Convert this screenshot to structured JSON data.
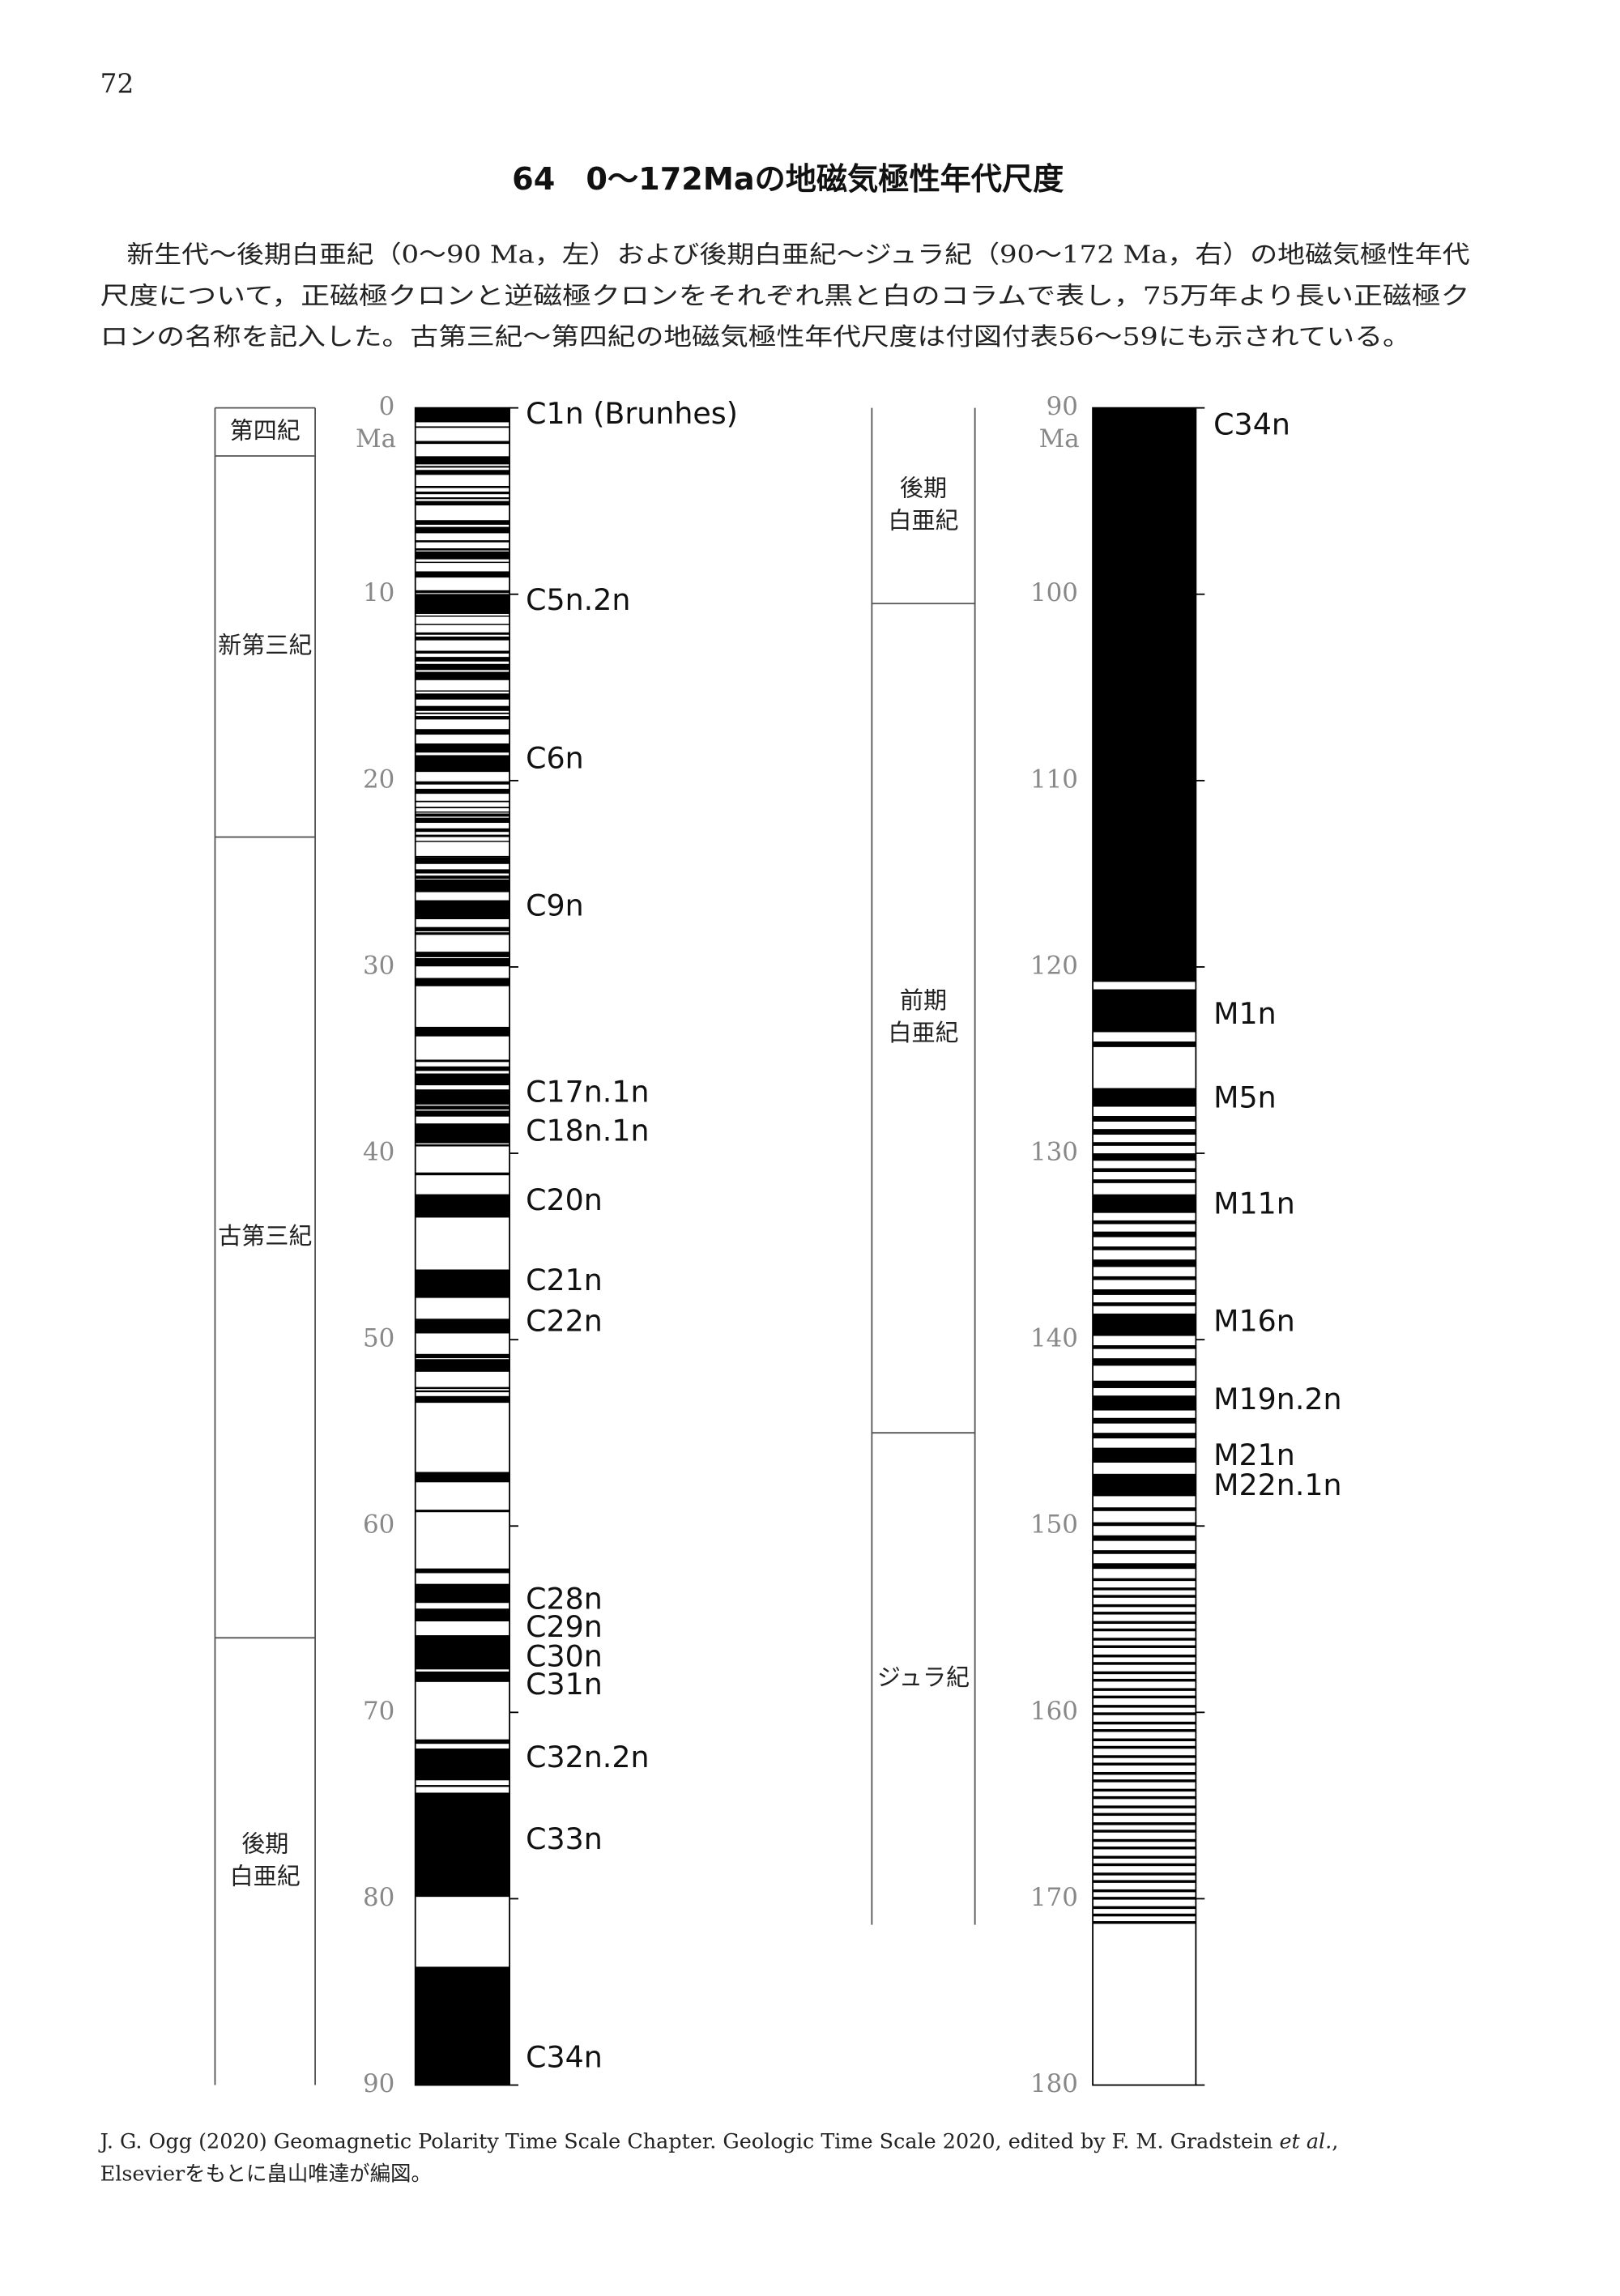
{
  "page_number": "72",
  "title": "64　0〜172Maの地磁気極性年代尺度",
  "body": [
    "新生代〜後期白亜紀（0〜90 Ma，左）および後期白亜紀〜ジュラ紀（90〜172 Ma，右）の地磁気極性年代",
    "尺度について，正磁極クロンと逆磁極クロンをそれぞれ黒と白のコラムで表し，75万年より長い正磁極ク",
    "ロンの名称を記入した。古第三紀〜第四紀の地磁気極性年代尺度は付図付表56〜59にも示されている。"
  ],
  "columns": [
    {
      "ylim": [
        0,
        90
      ],
      "yticks": [
        0,
        10,
        20,
        30,
        40,
        50,
        60,
        70,
        80,
        90
      ],
      "unit": "Ma",
      "periods": [
        {
          "label": [
            "第四紀"
          ],
          "start": 0,
          "end": 2.58
        },
        {
          "label": [
            "新第三紀"
          ],
          "start": 2.58,
          "end": 23.03
        },
        {
          "label": [
            "古第三紀"
          ],
          "start": 23.03,
          "end": 66.0
        },
        {
          "label": [
            "後期",
            "白亜紀"
          ],
          "start": 66.0,
          "end": 90
        }
      ],
      "normal_intervals": [
        [
          0,
          0.773
        ],
        [
          0.99,
          1.07
        ],
        [
          1.775,
          1.934
        ],
        [
          2.595,
          3.032
        ],
        [
          3.116,
          3.207
        ],
        [
          3.33,
          3.596
        ],
        [
          4.187,
          4.3
        ],
        [
          4.493,
          4.631
        ],
        [
          4.799,
          4.896
        ],
        [
          4.997,
          5.235
        ],
        [
          6.023,
          6.272
        ],
        [
          6.386,
          6.727
        ],
        [
          7.104,
          7.214
        ],
        [
          7.537,
          7.65
        ],
        [
          7.701,
          8.125
        ],
        [
          8.257,
          8.3
        ],
        [
          8.771,
          9.105
        ],
        [
          9.786,
          9.937
        ],
        [
          9.984,
          11.056
        ],
        [
          11.146,
          11.188
        ],
        [
          11.592,
          11.657
        ],
        [
          12.049,
          12.174
        ],
        [
          12.272,
          12.474
        ],
        [
          13.032,
          13.183
        ],
        [
          13.363,
          13.608
        ],
        [
          13.739,
          14.07
        ],
        [
          14.163,
          14.609
        ],
        [
          15.16,
          15.222
        ],
        [
          15.327,
          15.651
        ],
        [
          15.994,
          16.261
        ],
        [
          16.351,
          16.434
        ],
        [
          16.532,
          16.721
        ],
        [
          17.235,
          17.533
        ],
        [
          18.007,
          18.497
        ],
        [
          18.636,
          19.535
        ],
        [
          20.04,
          20.21
        ],
        [
          20.44,
          20.709
        ],
        [
          21.083,
          21.159
        ],
        [
          21.403,
          21.483
        ],
        [
          21.659,
          21.688
        ],
        [
          21.767,
          21.936
        ],
        [
          21.992,
          22.268
        ],
        [
          22.564,
          22.754
        ],
        [
          22.902,
          23.03
        ],
        [
          23.233,
          23.295
        ],
        [
          24.044,
          24.062
        ],
        [
          24.108,
          24.474
        ],
        [
          24.761,
          24.984
        ],
        [
          25.099,
          25.264
        ],
        [
          25.304,
          25.987
        ],
        [
          26.42,
          27.439
        ],
        [
          27.859,
          28.087
        ],
        [
          28.141,
          28.278
        ],
        [
          29.183,
          29.477
        ],
        [
          29.527,
          29.97
        ],
        [
          30.591,
          31.034
        ],
        [
          33.214,
          33.726
        ],
        [
          34.976,
          35.102
        ],
        [
          35.336,
          35.58
        ],
        [
          35.718,
          36.351
        ],
        [
          36.573,
          37.385
        ],
        [
          37.444,
          37.652
        ],
        [
          37.71,
          38.03
        ],
        [
          38.398,
          39.464
        ],
        [
          39.522,
          39.631
        ],
        [
          41.03,
          41.18
        ],
        [
          42.196,
          43.45
        ],
        [
          46.235,
          47.76
        ],
        [
          48.878,
          49.666
        ],
        [
          50.767,
          50.996
        ],
        [
          51.047,
          51.724
        ],
        [
          52.54,
          52.648
        ],
        [
          52.72,
          52.823
        ],
        [
          53.027,
          53.39
        ],
        [
          57.101,
          57.656
        ],
        [
          59.126,
          59.26
        ],
        [
          62.278,
          62.53
        ],
        [
          63.104,
          64.128
        ],
        [
          64.432,
          65.118
        ],
        [
          65.861,
          67.696
        ],
        [
          67.809,
          68.369
        ],
        [
          71.449,
          71.689
        ],
        [
          71.939,
          73.649
        ],
        [
          73.9,
          74.0
        ],
        [
          74.309,
          79.9
        ],
        [
          83.65,
          90
        ]
      ],
      "chrons": [
        {
          "label": "C1n (Brunhes)",
          "age": 0.4
        },
        {
          "label": "C5n.2n",
          "age": 10.4
        },
        {
          "label": "C6n",
          "age": 18.9
        },
        {
          "label": "C9n",
          "age": 26.8
        },
        {
          "label": "C17n.1n",
          "age": 36.8
        },
        {
          "label": "C18n.1n",
          "age": 38.9
        },
        {
          "label": "C20n",
          "age": 42.6
        },
        {
          "label": "C21n",
          "age": 46.9
        },
        {
          "label": "C22n",
          "age": 49.1
        },
        {
          "label": "C28n",
          "age": 64.0
        },
        {
          "label": "C29n",
          "age": 65.5
        },
        {
          "label": "C30n",
          "age": 67.1
        },
        {
          "label": "C31n",
          "age": 68.6
        },
        {
          "label": "C32n.2n",
          "age": 72.5
        },
        {
          "label": "C33n",
          "age": 76.9
        },
        {
          "label": "C34n",
          "age": 88.6
        }
      ]
    },
    {
      "ylim": [
        90,
        180
      ],
      "yticks": [
        90,
        100,
        110,
        120,
        130,
        140,
        150,
        160,
        170,
        180
      ],
      "unit": "Ma",
      "periods": [
        {
          "label": [
            "後期",
            "白亜紀"
          ],
          "start": 90,
          "end": 100.5
        },
        {
          "label": [
            "前期",
            "白亜紀"
          ],
          "start": 100.5,
          "end": 145.0
        },
        {
          "label": [
            "ジュラ紀"
          ],
          "start": 145.0,
          "end": 171.4
        }
      ],
      "normal_intervals": [
        [
          90,
          120.8
        ],
        [
          121.2,
          123.5
        ],
        [
          124.0,
          124.3
        ],
        [
          126.5,
          127.5
        ],
        [
          128.0,
          128.3
        ],
        [
          128.7,
          129.0
        ],
        [
          129.4,
          129.6
        ],
        [
          130.0,
          130.4
        ],
        [
          130.8,
          131.0
        ],
        [
          131.4,
          131.6
        ],
        [
          132.2,
          133.2
        ],
        [
          133.6,
          133.8
        ],
        [
          134.2,
          134.5
        ],
        [
          135.0,
          135.2
        ],
        [
          135.7,
          136.1
        ],
        [
          136.6,
          136.8
        ],
        [
          137.3,
          137.6
        ],
        [
          138.0,
          138.2
        ],
        [
          138.6,
          139.8
        ],
        [
          140.3,
          140.5
        ],
        [
          141.0,
          141.4
        ],
        [
          142.2,
          142.6
        ],
        [
          143.0,
          143.8
        ],
        [
          144.2,
          144.5
        ],
        [
          145.0,
          145.3
        ],
        [
          145.8,
          146.6
        ],
        [
          147.2,
          148.4
        ],
        [
          149.0,
          149.2
        ],
        [
          149.8,
          150.0
        ],
        [
          150.5,
          150.8
        ],
        [
          151.3,
          151.5
        ],
        [
          152.0,
          152.3
        ],
        [
          152.8,
          152.95
        ],
        [
          153.3,
          153.45
        ],
        [
          153.7,
          153.85
        ],
        [
          154.2,
          154.35
        ],
        [
          154.6,
          154.75
        ],
        [
          155.1,
          155.25
        ],
        [
          155.5,
          155.65
        ],
        [
          156.0,
          156.15
        ],
        [
          156.4,
          156.55
        ],
        [
          156.9,
          157.05
        ],
        [
          157.3,
          157.45
        ],
        [
          157.8,
          157.95
        ],
        [
          158.2,
          158.35
        ],
        [
          158.7,
          158.85
        ],
        [
          159.1,
          159.25
        ],
        [
          159.6,
          159.75
        ],
        [
          160.0,
          160.15
        ],
        [
          160.5,
          160.65
        ],
        [
          160.9,
          161.05
        ],
        [
          161.4,
          161.55
        ],
        [
          161.8,
          161.95
        ],
        [
          162.3,
          162.45
        ],
        [
          162.7,
          162.85
        ],
        [
          163.2,
          163.35
        ],
        [
          163.6,
          163.75
        ],
        [
          164.1,
          164.25
        ],
        [
          164.5,
          164.65
        ],
        [
          165.0,
          165.15
        ],
        [
          165.4,
          165.55
        ],
        [
          165.9,
          166.05
        ],
        [
          166.3,
          166.45
        ],
        [
          166.8,
          166.95
        ],
        [
          167.2,
          167.35
        ],
        [
          167.7,
          167.85
        ],
        [
          168.1,
          168.25
        ],
        [
          168.6,
          168.75
        ],
        [
          169.0,
          169.15
        ],
        [
          169.5,
          169.65
        ],
        [
          169.9,
          170.05
        ],
        [
          170.4,
          170.55
        ],
        [
          170.8,
          170.95
        ],
        [
          171.2,
          171.35
        ]
      ],
      "chrons": [
        {
          "label": "C34n",
          "age": 91.0
        },
        {
          "label": "M1n",
          "age": 122.6
        },
        {
          "label": "M5n",
          "age": 127.1
        },
        {
          "label": "M11n",
          "age": 132.8
        },
        {
          "label": "M16n",
          "age": 139.1
        },
        {
          "label": "M19n.2n",
          "age": 143.3
        },
        {
          "label": "M21n",
          "age": 146.3
        },
        {
          "label": "M22n.1n",
          "age": 147.9
        }
      ]
    }
  ],
  "footnote": {
    "line1": [
      "J. G. Ogg (2020) Geomagnetic Polarity Time Scale Chapter. Geologic Time Scale 2020, edited by F. M. Gradstein ",
      "et al.",
      ","
    ],
    "line2": "Elsevierをもとに畠山唯達が編図。"
  }
}
